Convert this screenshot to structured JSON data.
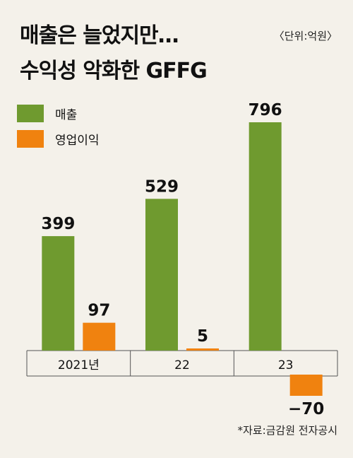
{
  "title_lines": [
    "매출은 늘었지만…",
    "수익성 악화한 GFFG"
  ],
  "unit": "〈단위:억원〉",
  "source": "*자료:금감원 전자공시",
  "colors": {
    "revenue": "#6f9a2f",
    "operating_profit": "#f0820f",
    "background": "#f4f1ea"
  },
  "chart_data": {
    "type": "bar",
    "title": "매출은 늘었지만… 수익성 악화한 GFFG",
    "categories": [
      "2021년",
      "22",
      "23"
    ],
    "series": [
      {
        "name": "매출",
        "values": [
          399,
          529,
          796
        ],
        "labels": [
          "399",
          "529",
          "796"
        ]
      },
      {
        "name": "영업이익",
        "values": [
          97,
          5,
          -70
        ],
        "labels": [
          "97",
          "5",
          "−70"
        ]
      }
    ],
    "ylim": [
      -70,
      796
    ],
    "grid": false,
    "legend": "top-left"
  }
}
